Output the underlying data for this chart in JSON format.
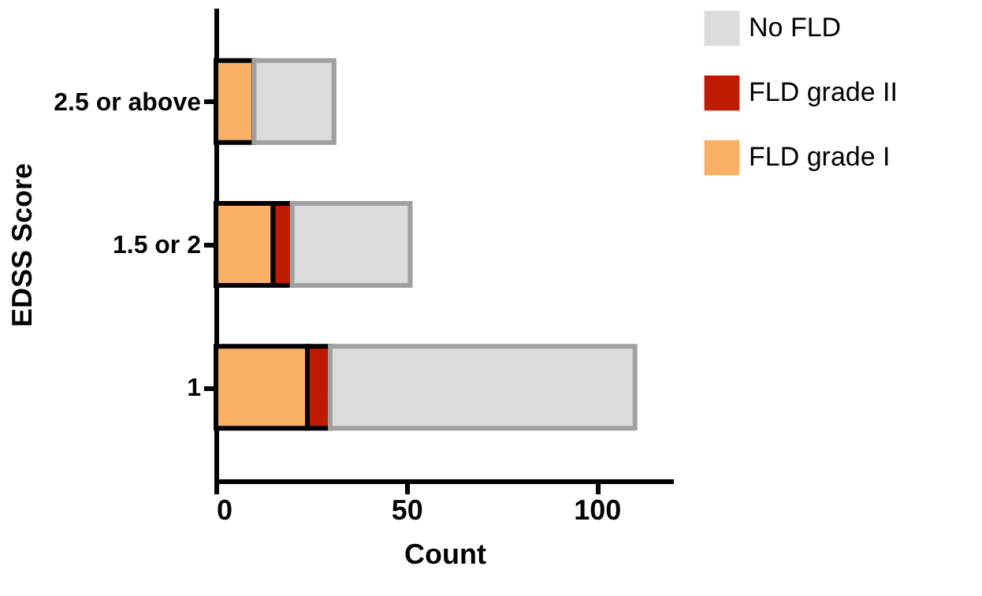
{
  "chart_data": {
    "type": "bar",
    "orientation": "horizontal",
    "stacked": true,
    "categories": [
      "2.5 or above",
      "1.5 or 2",
      "1"
    ],
    "series": [
      {
        "name": "FLD grade I",
        "color": "#f9b065",
        "values": [
          10,
          15,
          24
        ]
      },
      {
        "name": "FLD grade II",
        "color": "#c01a00",
        "values": [
          0,
          5,
          6
        ]
      },
      {
        "name": "No FLD",
        "color": "#dcdcdc",
        "values": [
          21,
          31,
          80
        ]
      }
    ],
    "xlim": [
      0,
      120
    ],
    "xticks": [
      0,
      50,
      100
    ],
    "xlabel": "Count",
    "ylabel": "EDSS Score",
    "grid": false,
    "legend": "top right"
  }
}
